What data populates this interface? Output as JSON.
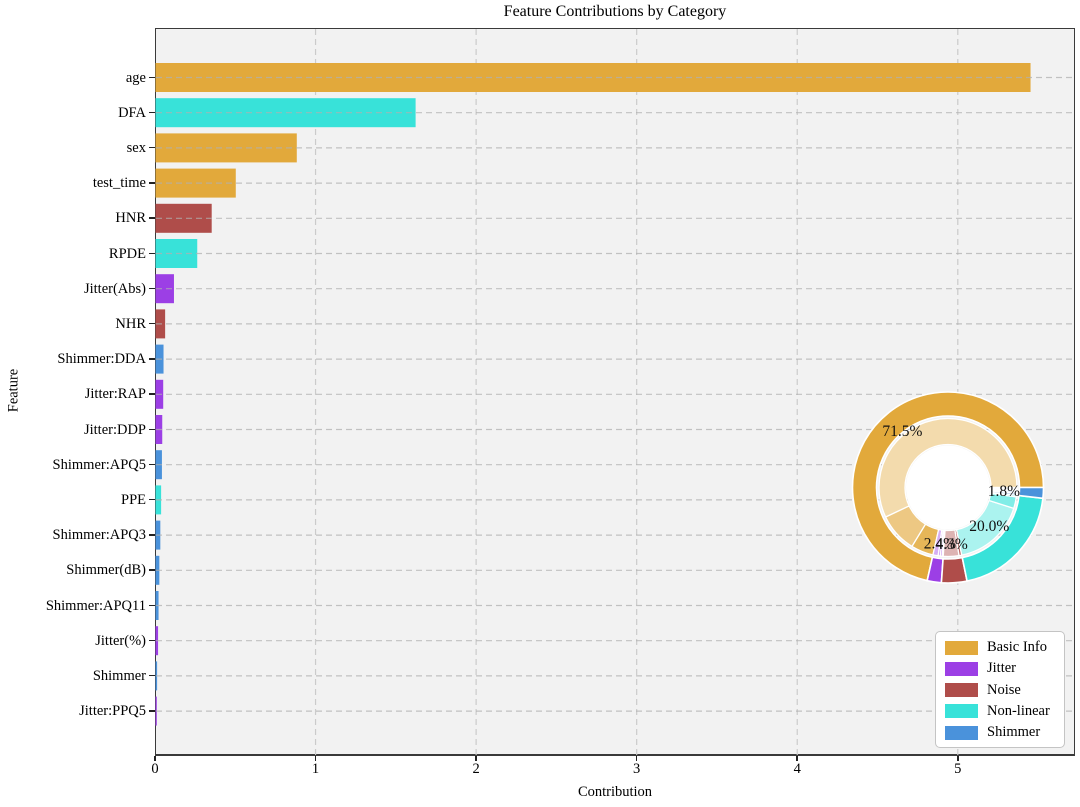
{
  "chart_data": {
    "type": "bar",
    "orientation": "horizontal",
    "title": "Feature Contributions by Category",
    "xlabel": "Contribution",
    "ylabel": "Feature",
    "xlim": [
      0,
      5.73
    ],
    "xticks": [
      0,
      1,
      2,
      3,
      4,
      5
    ],
    "grid": "dashed",
    "categories": [
      "age",
      "DFA",
      "sex",
      "test_time",
      "HNR",
      "RPDE",
      "Jitter(Abs)",
      "NHR",
      "Shimmer:DDA",
      "Jitter:RAP",
      "Jitter:DDP",
      "Shimmer:APQ5",
      "PPE",
      "Shimmer:APQ3",
      "Shimmer(dB)",
      "Shimmer:APQ11",
      "Jitter(%)",
      "Shimmer",
      "Jitter:PPQ5"
    ],
    "values": [
      5.45,
      1.62,
      0.88,
      0.5,
      0.35,
      0.26,
      0.115,
      0.06,
      0.05,
      0.048,
      0.042,
      0.04,
      0.035,
      0.03,
      0.024,
      0.019,
      0.016,
      0.01,
      0.005
    ],
    "bar_groups": [
      "Basic Info",
      "Non-linear",
      "Basic Info",
      "Basic Info",
      "Noise",
      "Non-linear",
      "Jitter",
      "Noise",
      "Shimmer",
      "Jitter",
      "Jitter",
      "Shimmer",
      "Non-linear",
      "Shimmer",
      "Shimmer",
      "Shimmer",
      "Jitter",
      "Shimmer",
      "Jitter"
    ],
    "group_colors": {
      "Basic Info": "#E2A93B",
      "Jitter": "#9C3FE5",
      "Noise": "#AF4D4A",
      "Non-linear": "#38E2D9",
      "Shimmer": "#4A92DB"
    },
    "legend": {
      "position": "lower right",
      "labels": [
        "Basic Info",
        "Jitter",
        "Noise",
        "Non-linear",
        "Shimmer"
      ]
    },
    "inset_pie": {
      "type": "donut-nested",
      "description": "outer ring = category share of total contribution, inner ring = per-feature breakdown in lighter shades",
      "slices": [
        {
          "label": "Basic Info",
          "pct": 71.5,
          "pct_label": "71.5%"
        },
        {
          "label": "Jitter",
          "pct": 2.4,
          "pct_label": "2.4%"
        },
        {
          "label": "Noise",
          "pct": 4.3,
          "pct_label": "4.3%"
        },
        {
          "label": "Non-linear",
          "pct": 20.0,
          "pct_label": "20.0%"
        },
        {
          "label": "Shimmer",
          "pct": 1.8,
          "pct_label": "1.8%"
        }
      ]
    }
  }
}
